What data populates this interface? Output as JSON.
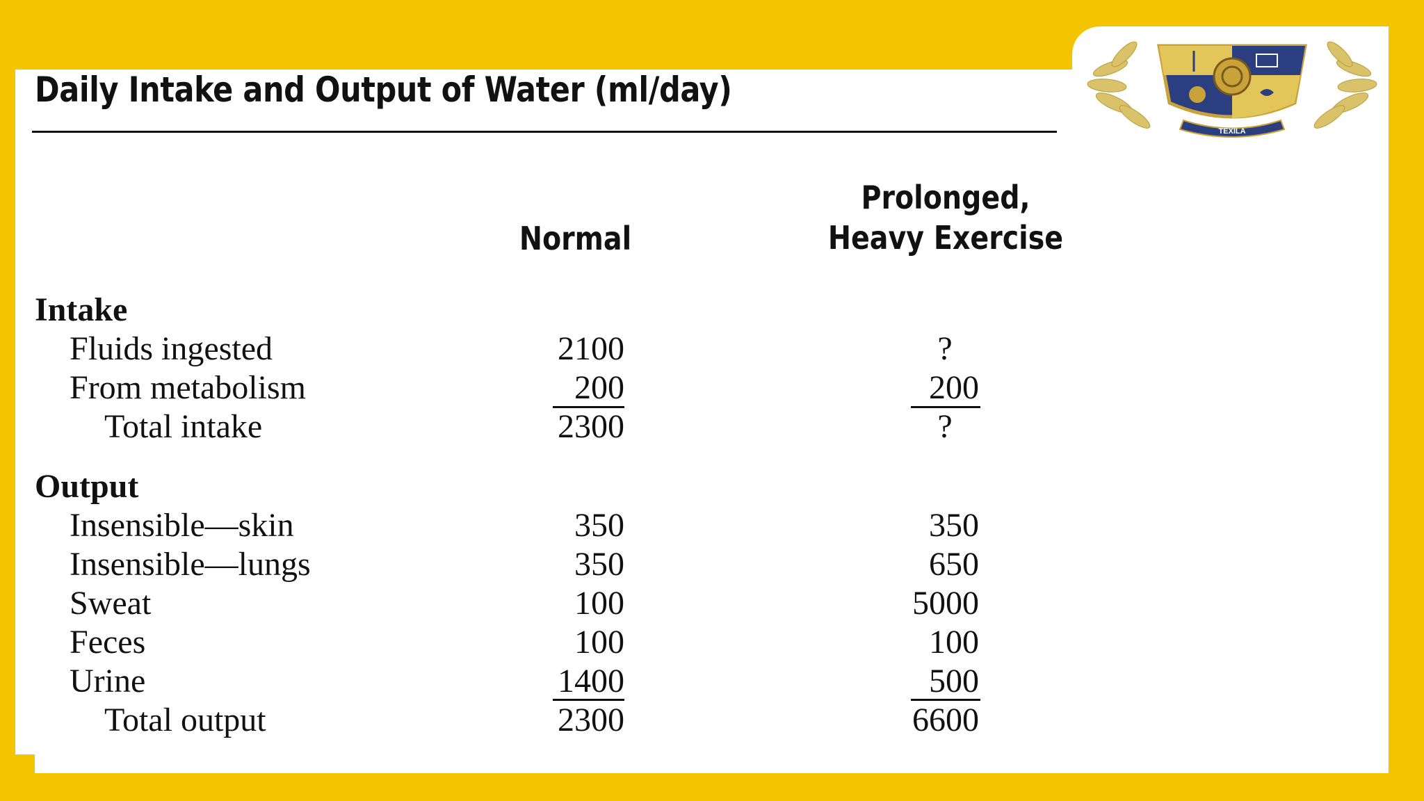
{
  "title": "Daily Intake and Output of Water (ml/day)",
  "columns": {
    "normal": "Normal",
    "exercise_line1": "Prolonged,",
    "exercise_line2": "Heavy Exercise"
  },
  "logo": {
    "text": "TEXILA"
  },
  "intake": {
    "heading": "Intake",
    "rows": [
      {
        "label": "Fluids ingested",
        "normal": "2100",
        "exercise": "?"
      },
      {
        "label": "From metabolism",
        "normal": "200",
        "exercise": "200"
      }
    ],
    "total": {
      "label": "Total intake",
      "normal": "2300",
      "exercise": "?"
    }
  },
  "output": {
    "heading": "Output",
    "rows": [
      {
        "label": "Insensible—skin",
        "normal": "350",
        "exercise": "350"
      },
      {
        "label": "Insensible—lungs",
        "normal": "350",
        "exercise": "650"
      },
      {
        "label": "Sweat",
        "normal": "100",
        "exercise": "5000"
      },
      {
        "label": "Feces",
        "normal": "100",
        "exercise": "100"
      },
      {
        "label": "Urine",
        "normal": "1400",
        "exercise": "500"
      }
    ],
    "total": {
      "label": "Total output",
      "normal": "2300",
      "exercise": "6600"
    }
  },
  "colors": {
    "frame": "#f5c400",
    "text": "#111111",
    "shield_blue": "#2b3f80",
    "shield_gold": "#e2c65a"
  }
}
